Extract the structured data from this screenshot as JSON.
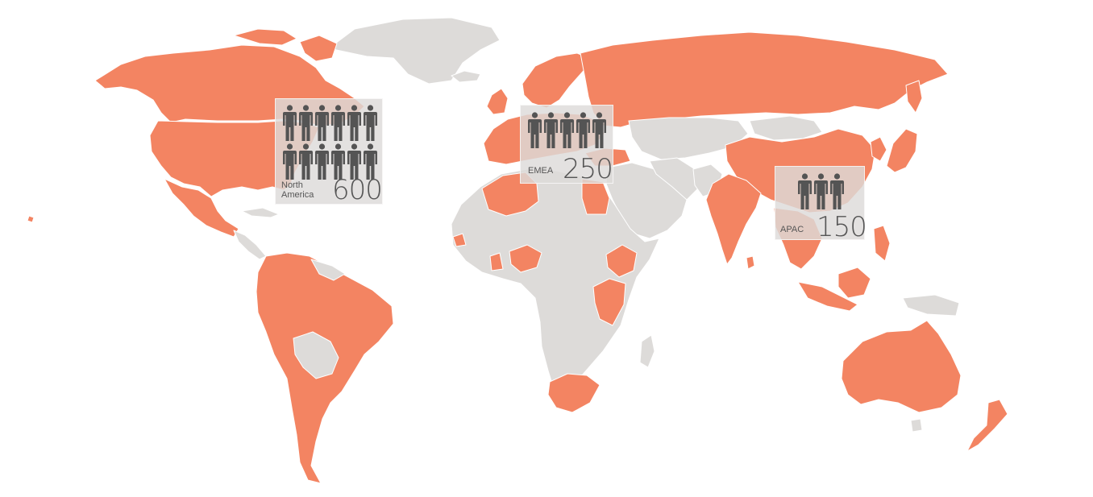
{
  "colors": {
    "highlight": "#f38462",
    "land": "#dddbd9",
    "panel": "#dddbd9",
    "icon": "#545454",
    "text": "#555555"
  },
  "regions": [
    {
      "key": "north_america",
      "label": "North\nAmerica",
      "value": "600",
      "icon": "person-icon",
      "icon_count": 12
    },
    {
      "key": "emea",
      "label": "EMEA",
      "value": "250",
      "icon": "person-icon",
      "icon_count": 5
    },
    {
      "key": "apac",
      "label": "APAC",
      "value": "150",
      "icon": "person-icon",
      "icon_count": 3
    }
  ]
}
